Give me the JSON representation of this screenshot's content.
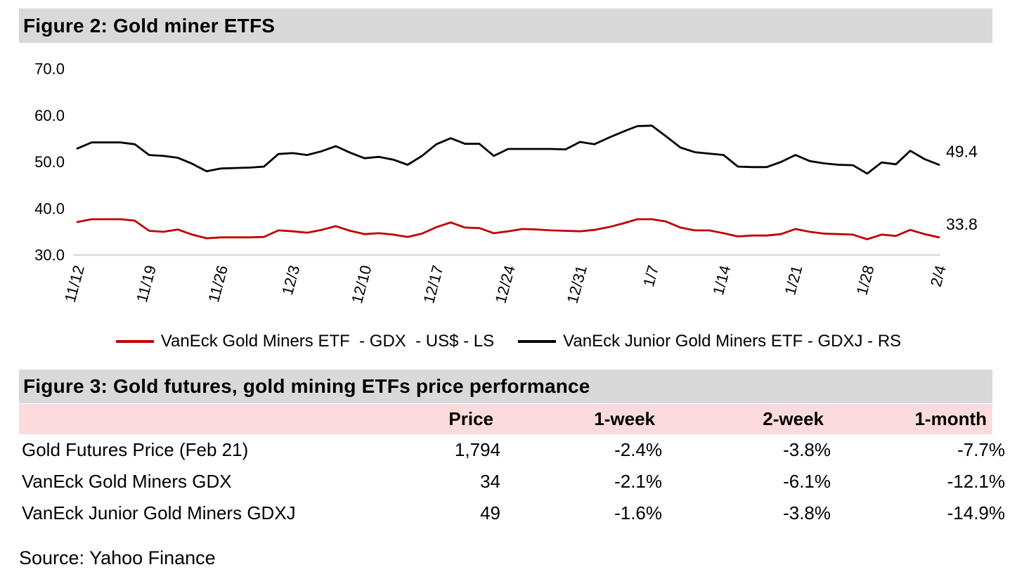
{
  "figure2": {
    "title": "Figure 2: Gold miner ETFS"
  },
  "chart_data": {
    "type": "line",
    "title": "Figure 2: Gold miner ETFS",
    "x_tick_labels": [
      "11/12",
      "11/19",
      "11/26",
      "12/3",
      "12/10",
      "12/17",
      "12/24",
      "12/31",
      "1/7",
      "1/14",
      "1/21",
      "1/28",
      "2/4"
    ],
    "points_per_tick": 5,
    "y_tick_labels": [
      "70.0",
      "60.0",
      "50.0",
      "40.0",
      "30.0"
    ],
    "ylim": [
      30,
      70
    ],
    "grid": "baseline-only",
    "legend_position": "bottom",
    "series": [
      {
        "id": "gdx",
        "name": "VanEck Gold Miners ETF  - GDX  - US$ - LS",
        "color": "#C00000",
        "axis": "LS",
        "end_label": "33.8",
        "values": [
          37.1,
          37.7,
          37.7,
          37.7,
          37.4,
          35.2,
          35.0,
          35.5,
          34.4,
          33.6,
          33.8,
          33.8,
          33.8,
          33.9,
          35.3,
          35.1,
          34.8,
          35.4,
          36.2,
          35.2,
          34.5,
          34.7,
          34.4,
          33.9,
          34.6,
          36.0,
          37.0,
          35.9,
          35.8,
          34.7,
          35.1,
          35.6,
          35.5,
          35.3,
          35.2,
          35.1,
          35.4,
          36.0,
          36.8,
          37.7,
          37.7,
          37.2,
          35.9,
          35.3,
          35.3,
          34.7,
          34.0,
          34.2,
          34.2,
          34.5,
          35.6,
          35.0,
          34.6,
          34.5,
          34.4,
          33.4,
          34.4,
          34.1,
          35.4,
          34.5,
          33.8
        ]
      },
      {
        "id": "gdxj",
        "name": "VanEck Junior Gold Miners ETF - GDXJ - RS",
        "color": "#000000",
        "axis": "RS",
        "end_label": "49.4",
        "values": [
          52.9,
          54.2,
          54.2,
          54.2,
          53.8,
          51.5,
          51.3,
          50.9,
          49.6,
          48.0,
          48.6,
          48.7,
          48.8,
          49.0,
          51.7,
          51.9,
          51.5,
          52.3,
          53.4,
          52.0,
          50.8,
          51.1,
          50.5,
          49.4,
          51.3,
          53.8,
          55.1,
          53.9,
          53.9,
          51.3,
          52.8,
          52.8,
          52.8,
          52.8,
          52.7,
          54.3,
          53.8,
          55.2,
          56.5,
          57.7,
          57.8,
          55.5,
          53.1,
          52.1,
          51.8,
          51.5,
          49.0,
          48.9,
          48.9,
          50.0,
          51.5,
          50.2,
          49.7,
          49.4,
          49.3,
          47.5,
          49.9,
          49.5,
          52.4,
          50.6,
          49.4
        ]
      }
    ]
  },
  "figure3": {
    "title": "Figure 3: Gold futures, gold mining ETFs price performance",
    "table": {
      "columns": [
        "Price",
        "1-week",
        "2-week",
        "1-month"
      ],
      "rows": [
        {
          "label": "Gold Futures Price (Feb 21)",
          "values": [
            "1,794",
            "-2.4%",
            "-3.8%",
            "-7.7%"
          ]
        },
        {
          "label": "VanEck Gold Miners GDX",
          "values": [
            "34",
            "-2.1%",
            "-6.1%",
            "-12.1%"
          ]
        },
        {
          "label": "VanEck Junior Gold Miners GDXJ",
          "values": [
            "49",
            "-1.6%",
            "-3.8%",
            "-14.9%"
          ]
        }
      ]
    }
  },
  "source_note": "Source: Yahoo Finance",
  "colors": {
    "figure_header_bg": "#D9D9D9",
    "table_header_bg": "#FBDBDB",
    "gdx_line": "#C00000",
    "gdxj_line": "#000000",
    "axis_baseline": "#D9D9D9"
  }
}
